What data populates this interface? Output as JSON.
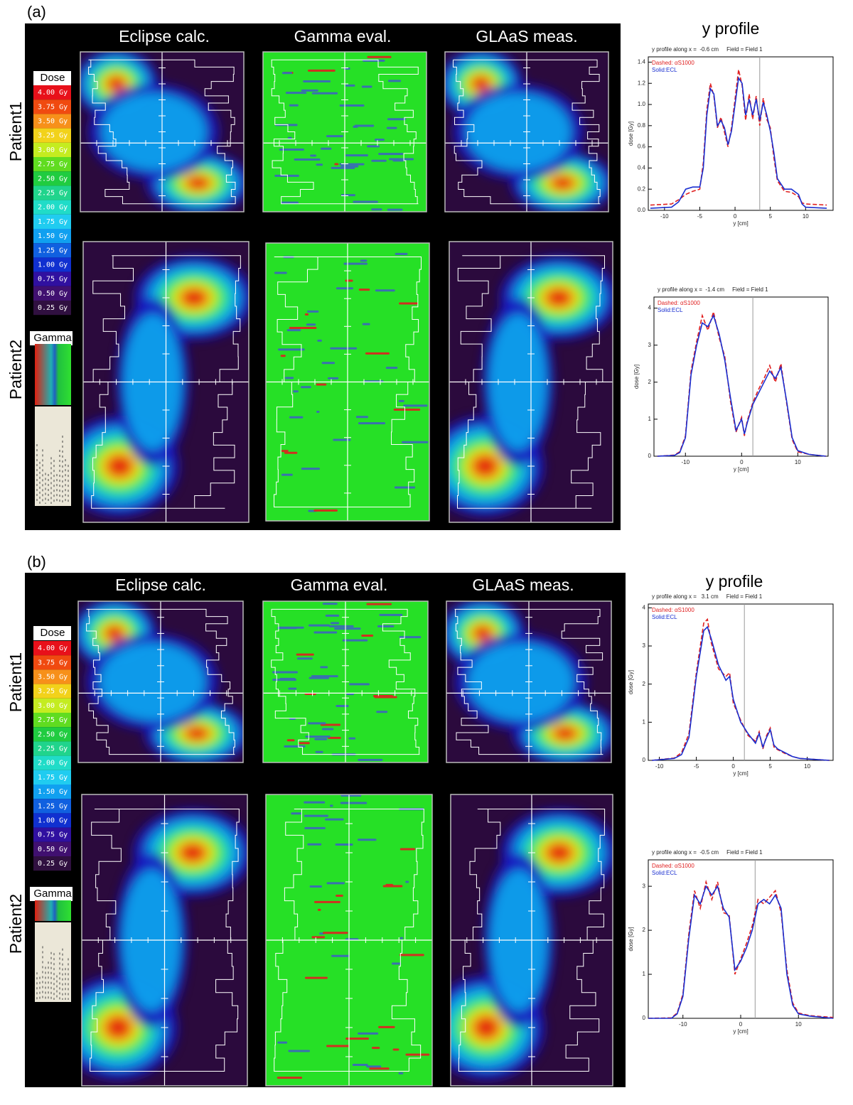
{
  "panels": [
    {
      "label": "(a)",
      "columns": [
        "Eclipse calc.",
        "Gamma eval.",
        "GLAaS meas."
      ],
      "rows": [
        "Patient1",
        "Patient2"
      ],
      "dose_legend": {
        "title": "Dose",
        "levels": [
          {
            "label": "4.00 Gy",
            "color": "#e8101a"
          },
          {
            "label": "3.75 Gy",
            "color": "#f04a10"
          },
          {
            "label": "3.50 Gy",
            "color": "#f7901a"
          },
          {
            "label": "3.25 Gy",
            "color": "#f2d21a"
          },
          {
            "label": "3.00 Gy",
            "color": "#c4ec20"
          },
          {
            "label": "2.75 Gy",
            "color": "#60dc20"
          },
          {
            "label": "2.50 Gy",
            "color": "#20cc40"
          },
          {
            "label": "2.25 Gy",
            "color": "#20d48c"
          },
          {
            "label": "2.00 Gy",
            "color": "#20dcc8"
          },
          {
            "label": "1.75 Gy",
            "color": "#20ccf0"
          },
          {
            "label": "1.50 Gy",
            "color": "#10a0f0"
          },
          {
            "label": "1.25 Gy",
            "color": "#1060e0"
          },
          {
            "label": "1.00 Gy",
            "color": "#1030d0"
          },
          {
            "label": "0.75 Gy",
            "color": "#3010a0"
          },
          {
            "label": "0.50 Gy",
            "color": "#401070"
          },
          {
            "label": "0.25 Gy",
            "color": "#301040"
          }
        ]
      },
      "gamma_legend": {
        "title": "Gamma"
      },
      "profile_heading": "y profile"
    },
    {
      "label": "(b)",
      "columns": [
        "Eclipse calc.",
        "Gamma eval.",
        "GLAaS meas."
      ],
      "rows": [
        "Patient1",
        "Patient2"
      ],
      "dose_legend": {
        "title": "Dose",
        "levels": [
          {
            "label": "4.00 Gy",
            "color": "#e8101a"
          },
          {
            "label": "3.75 Gy",
            "color": "#f04a10"
          },
          {
            "label": "3.50 Gy",
            "color": "#f7901a"
          },
          {
            "label": "3.25 Gy",
            "color": "#f2d21a"
          },
          {
            "label": "3.00 Gy",
            "color": "#c4ec20"
          },
          {
            "label": "2.75 Gy",
            "color": "#60dc20"
          },
          {
            "label": "2.50 Gy",
            "color": "#20cc40"
          },
          {
            "label": "2.25 Gy",
            "color": "#20d48c"
          },
          {
            "label": "2.00 Gy",
            "color": "#20dcc8"
          },
          {
            "label": "1.75 Gy",
            "color": "#20ccf0"
          },
          {
            "label": "1.50 Gy",
            "color": "#10a0f0"
          },
          {
            "label": "1.25 Gy",
            "color": "#1060e0"
          },
          {
            "label": "1.00 Gy",
            "color": "#1030d0"
          },
          {
            "label": "0.75 Gy",
            "color": "#3010a0"
          },
          {
            "label": "0.50 Gy",
            "color": "#401070"
          },
          {
            "label": "0.25 Gy",
            "color": "#301040"
          }
        ]
      },
      "gamma_legend": {
        "title": "Gamma"
      },
      "profile_heading": "y profile"
    }
  ],
  "chart_data": [
    {
      "type": "line",
      "title": "y profile along x =  -0.6 cm     Field = Field 1",
      "xlabel": "y [cm]",
      "ylabel": "dose [Gy]",
      "x": [
        -12,
        -9,
        -8,
        -7,
        -6,
        -5,
        -4.5,
        -4,
        -3.5,
        -3,
        -2.5,
        -2,
        -1.5,
        -1,
        -0.5,
        0,
        0.5,
        1,
        1.5,
        2,
        2.5,
        3,
        3.5,
        4,
        4.5,
        5,
        5.5,
        6,
        7,
        8,
        9,
        9.5,
        10,
        13
      ],
      "series": [
        {
          "name": "Dashed: αS1000",
          "color": "#e02020",
          "dashed": true,
          "values": [
            0.05,
            0.06,
            0.1,
            0.15,
            0.18,
            0.2,
            0.45,
            0.95,
            1.2,
            1.08,
            0.78,
            0.88,
            0.74,
            0.6,
            0.78,
            1.05,
            1.33,
            1.18,
            0.85,
            1.1,
            0.86,
            1.08,
            0.8,
            1.06,
            0.86,
            0.78,
            0.5,
            0.28,
            0.18,
            0.17,
            0.13,
            0.07,
            0.06,
            0.05
          ]
        },
        {
          "name": "Solid:ECL",
          "color": "#1a2fd0",
          "dashed": false,
          "values": [
            0.02,
            0.03,
            0.08,
            0.2,
            0.22,
            0.22,
            0.4,
            0.9,
            1.15,
            1.1,
            0.8,
            0.85,
            0.78,
            0.62,
            0.75,
            1.0,
            1.25,
            1.2,
            0.9,
            1.05,
            0.9,
            1.05,
            0.85,
            1.02,
            0.9,
            0.75,
            0.55,
            0.3,
            0.2,
            0.2,
            0.15,
            0.06,
            0.03,
            0.02
          ]
        }
      ],
      "xlim": [
        -12.3,
        13.9
      ],
      "ylim": [
        0,
        1.45
      ],
      "xticks": [
        -10,
        -5,
        0,
        5,
        10
      ],
      "yticks": [
        {
          "value": 0,
          "label": "0.0"
        },
        {
          "value": 0.2,
          "label": "0.2"
        },
        {
          "value": 0.4,
          "label": "0.4"
        },
        {
          "value": 0.6,
          "label": "0.6"
        },
        {
          "value": 0.8,
          "label": "0.8"
        },
        {
          "value": 1,
          "label": "1.0"
        },
        {
          "value": 1.2,
          "label": "1.2"
        },
        {
          "value": 1.4,
          "label": "1.4"
        }
      ],
      "cursor_x": 3.5
    },
    {
      "type": "line",
      "title": "y profile along x =  -1.4 cm     Field = Field 1",
      "xlabel": "y [cm]",
      "ylabel": "dose [Gy]",
      "x": [
        -15,
        -12,
        -11,
        -10,
        -9,
        -8,
        -7,
        -6,
        -5,
        -4,
        -3,
        -2,
        -1,
        0,
        0.5,
        1,
        2,
        3,
        4,
        5,
        6,
        7,
        8,
        9,
        10,
        12,
        15
      ],
      "series": [
        {
          "name": "Dashed: αS1000",
          "color": "#e02020",
          "dashed": true,
          "values": [
            0,
            0.03,
            0.12,
            0.55,
            2.3,
            3.1,
            3.8,
            3.4,
            3.9,
            3.2,
            2.7,
            1.5,
            0.65,
            1.05,
            0.55,
            0.95,
            1.45,
            1.8,
            2.1,
            2.45,
            2.0,
            2.5,
            1.45,
            0.45,
            0.12,
            0.05,
            0
          ]
        },
        {
          "name": "Solid:ECL",
          "color": "#1a2fd0",
          "dashed": false,
          "values": [
            0,
            0.02,
            0.1,
            0.5,
            2.2,
            3.0,
            3.6,
            3.5,
            3.8,
            3.3,
            2.6,
            1.6,
            0.7,
            1.0,
            0.6,
            0.9,
            1.4,
            1.7,
            2.0,
            2.3,
            2.1,
            2.4,
            1.5,
            0.5,
            0.15,
            0.05,
            0
          ]
        }
      ],
      "xlim": [
        -15.6,
        15.4
      ],
      "ylim": [
        0,
        4.3
      ],
      "xticks": [
        -10,
        0,
        10
      ],
      "yticks": [
        0,
        1,
        2,
        3,
        4
      ],
      "cursor_x": 2
    },
    {
      "type": "line",
      "title": "y profile along x =   3.1 cm     Field = Field 1",
      "xlabel": "y [cm]",
      "ylabel": "dose [Gy]",
      "x": [
        -11,
        -8,
        -7,
        -6,
        -5,
        -4,
        -3.5,
        -3,
        -2,
        -1,
        -0.5,
        0,
        1,
        2,
        3,
        3.5,
        4,
        4.5,
        5,
        5.5,
        6,
        7,
        8,
        9,
        13
      ],
      "series": [
        {
          "name": "Dashed: αS1000",
          "color": "#e02020",
          "dashed": true,
          "values": [
            0,
            0.06,
            0.2,
            0.7,
            2.3,
            3.6,
            3.7,
            3.1,
            2.4,
            2.2,
            2.3,
            1.5,
            1.05,
            0.65,
            0.5,
            0.75,
            0.3,
            0.65,
            0.85,
            0.35,
            0.28,
            0.18,
            0.1,
            0.05,
            0
          ]
        },
        {
          "name": "Solid:ECL",
          "color": "#1a2fd0",
          "dashed": false,
          "values": [
            0,
            0.05,
            0.15,
            0.6,
            2.2,
            3.4,
            3.5,
            3.2,
            2.5,
            2.1,
            2.2,
            1.6,
            1.0,
            0.7,
            0.45,
            0.7,
            0.35,
            0.6,
            0.8,
            0.4,
            0.3,
            0.2,
            0.1,
            0.05,
            0
          ]
        }
      ],
      "xlim": [
        -11.5,
        13.5
      ],
      "ylim": [
        0,
        4.1
      ],
      "xticks": [
        -10,
        -5,
        0,
        5,
        10
      ],
      "yticks": [
        0,
        1,
        2,
        3,
        4
      ],
      "cursor_x": 1.5
    },
    {
      "type": "line",
      "title": "y profile along x =  -0.5 cm     Field = Field 1",
      "xlabel": "y [cm]",
      "ylabel": "dose [Gy]",
      "x": [
        -16,
        -12,
        -11,
        -10,
        -9,
        -8,
        -7,
        -6,
        -5,
        -4,
        -3,
        -2,
        -1,
        0,
        1,
        2,
        3,
        4,
        5,
        6,
        7,
        8,
        9,
        10,
        12,
        16
      ],
      "series": [
        {
          "name": "Dashed: αS1000",
          "color": "#e02020",
          "dashed": true,
          "values": [
            0,
            0.01,
            0.12,
            0.55,
            1.9,
            2.9,
            2.5,
            3.1,
            2.7,
            3.1,
            2.4,
            2.35,
            1.0,
            1.35,
            1.7,
            2.1,
            2.7,
            2.6,
            2.75,
            2.9,
            2.4,
            1.1,
            0.35,
            0.12,
            0.06,
            0.02
          ]
        },
        {
          "name": "Solid:ECL",
          "color": "#1a2fd0",
          "dashed": false,
          "values": [
            0,
            0,
            0.1,
            0.5,
            1.8,
            2.8,
            2.6,
            3.0,
            2.8,
            3.0,
            2.5,
            2.3,
            1.1,
            1.3,
            1.6,
            2.0,
            2.6,
            2.7,
            2.6,
            2.8,
            2.5,
            1.0,
            0.3,
            0.1,
            0.05,
            0
          ]
        }
      ],
      "xlim": [
        -16,
        16
      ],
      "ylim": [
        0,
        3.6
      ],
      "xticks": [
        -10,
        0,
        10
      ],
      "yticks": [
        0,
        1,
        2,
        3
      ],
      "cursor_x": 2.5
    }
  ]
}
